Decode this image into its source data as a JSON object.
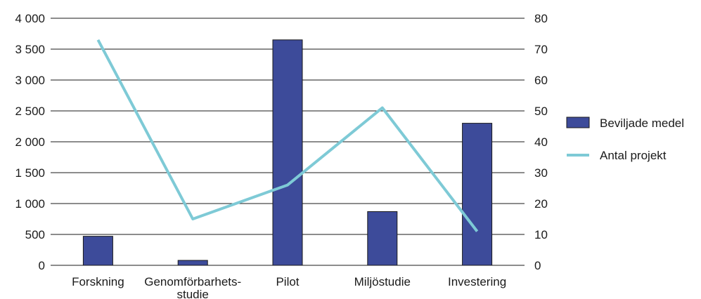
{
  "chart_data": {
    "type": "bar+line",
    "categories": [
      [
        "Forskning"
      ],
      [
        "Genomförbarhets-",
        "studie"
      ],
      [
        "Pilot"
      ],
      [
        "Miljöstudie"
      ],
      [
        "Investering"
      ]
    ],
    "y_left": {
      "min": 0,
      "max": 4000,
      "ticks": [
        "0",
        "500",
        "1 000",
        "1 500",
        "2 000",
        "2 500",
        "3 000",
        "3 500",
        "4 000"
      ],
      "tick_values": [
        0,
        500,
        1000,
        1500,
        2000,
        2500,
        3000,
        3500,
        4000
      ]
    },
    "y_right": {
      "min": 0,
      "max": 80,
      "ticks": [
        "0",
        "10",
        "20",
        "30",
        "40",
        "50",
        "60",
        "70",
        "80"
      ],
      "tick_values": [
        0,
        10,
        20,
        30,
        40,
        50,
        60,
        70,
        80
      ]
    },
    "grid": true,
    "legend_position": "right",
    "series": [
      {
        "name": "Beviljade medel",
        "type": "bar",
        "axis": "left",
        "color": "#3d4b9a",
        "values": [
          470,
          80,
          3650,
          870,
          2300
        ]
      },
      {
        "name": "Antal projekt",
        "type": "line",
        "axis": "right",
        "color": "#7ecad6",
        "values": [
          73,
          15,
          26,
          51,
          11
        ]
      }
    ]
  }
}
